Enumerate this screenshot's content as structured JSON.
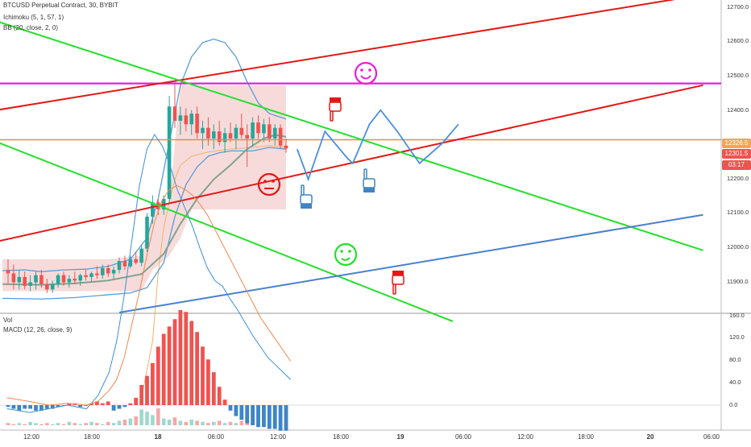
{
  "header": {
    "symbol_line": "BTCUSD Perpetual Contract, 30, BYBIT",
    "ichimoku": "Ichimoku (5, 1, 57, 1)",
    "bb": "BB (20, close, 2, 0)",
    "vol": "Vol",
    "macd": "MACD (12, 26, close, 9)"
  },
  "price_axis": {
    "labels": [
      "12700.0",
      "12600.0",
      "12500.0",
      "12400.0",
      "12200.0",
      "12100.0",
      "12000.0",
      "11900.0"
    ],
    "badges": [
      {
        "text": "12326.5",
        "color": "#f7a64f"
      },
      {
        "text": "12301.5",
        "color": "#ef5350"
      },
      {
        "text": "03:17",
        "color": "#ef5350"
      }
    ]
  },
  "macd_axis": {
    "labels": [
      "160.0",
      "120.0",
      "80.0",
      "40.0",
      "0.0"
    ]
  },
  "time_axis": {
    "labels": [
      "12:00",
      "18:00",
      "18",
      "06:00",
      "12:00",
      "18:00",
      "19",
      "06:00",
      "12:00",
      "18:00",
      "20",
      "06:00"
    ]
  },
  "colors": {
    "up_candle": "#26a69a",
    "down_candle": "#ef5350",
    "bb_band": "#5b9bd5",
    "cloud": "#f4cccc",
    "macd_line": "#3d8fd6",
    "signal_line": "#f0884e",
    "hist_up": "#ef5350",
    "hist_down": "#3d85c6",
    "trend_red": "#e51616",
    "trend_green": "#22e02a",
    "trend_blue": "#4a7fd0",
    "magenta": "#e91ed6",
    "orange": "#f5892f",
    "arrows": "#4a8ee0"
  },
  "drawings": {
    "emojis": [
      {
        "type": "smile-face-icon",
        "color": "#e91ed6"
      },
      {
        "type": "neutral-face-icon",
        "color": "#e51616"
      },
      {
        "type": "tongue-face-icon",
        "color": "#22e02a"
      }
    ],
    "hands": [
      "hand-down-icon",
      "hand-up-icon",
      "hand-up-icon",
      "hand-down-icon"
    ]
  },
  "chart_data": [
    {
      "type": "line",
      "title": "BTCUSD Perpetual Contract, 30, BYBIT",
      "ylim": [
        11840,
        12720
      ],
      "candles": [
        [
          11960,
          11990,
          11920,
          11950
        ],
        [
          11950,
          11975,
          11905,
          11925
        ],
        [
          11925,
          11960,
          11905,
          11940
        ],
        [
          11940,
          11955,
          11905,
          11915
        ],
        [
          11915,
          11945,
          11900,
          11925
        ],
        [
          11925,
          11955,
          11905,
          11945
        ],
        [
          11945,
          11960,
          11910,
          11920
        ],
        [
          11920,
          11935,
          11895,
          11905
        ],
        [
          11905,
          11930,
          11895,
          11920
        ],
        [
          11920,
          11950,
          11910,
          11945
        ],
        [
          11945,
          11955,
          11915,
          11925
        ],
        [
          11925,
          11945,
          11910,
          11935
        ],
        [
          11935,
          11955,
          11920,
          11930
        ],
        [
          11930,
          11950,
          11915,
          11945
        ],
        [
          11945,
          11960,
          11930,
          11940
        ],
        [
          11940,
          11955,
          11925,
          11950
        ],
        [
          11950,
          11970,
          11935,
          11945
        ],
        [
          11945,
          11975,
          11935,
          11965
        ],
        [
          11965,
          11975,
          11940,
          11950
        ],
        [
          11950,
          11970,
          11935,
          11960
        ],
        [
          11960,
          11995,
          11950,
          11985
        ],
        [
          11985,
          12000,
          11960,
          11970
        ],
        [
          11970,
          12000,
          11965,
          11990
        ],
        [
          11990,
          12010,
          11975,
          11980
        ],
        [
          11980,
          12030,
          11970,
          12020
        ],
        [
          12020,
          12120,
          12010,
          12110
        ],
        [
          12110,
          12170,
          12090,
          12150
        ],
        [
          12150,
          12160,
          12115,
          12130
        ],
        [
          12130,
          12170,
          12115,
          12160
        ],
        [
          12160,
          12450,
          12150,
          12420
        ],
        [
          12420,
          12490,
          12360,
          12380
        ],
        [
          12380,
          12420,
          12340,
          12395
        ],
        [
          12395,
          12415,
          12350,
          12370
        ],
        [
          12370,
          12410,
          12340,
          12400
        ],
        [
          12400,
          12420,
          12330,
          12345
        ],
        [
          12345,
          12380,
          12300,
          12360
        ],
        [
          12360,
          12390,
          12310,
          12330
        ],
        [
          12330,
          12370,
          12300,
          12350
        ],
        [
          12350,
          12380,
          12310,
          12320
        ],
        [
          12320,
          12360,
          12290,
          12345
        ],
        [
          12345,
          12375,
          12320,
          12330
        ],
        [
          12330,
          12370,
          12300,
          12360
        ],
        [
          12360,
          12400,
          12330,
          12340
        ],
        [
          12340,
          12370,
          12250,
          12330
        ],
        [
          12330,
          12390,
          12310,
          12375
        ],
        [
          12375,
          12395,
          12330,
          12345
        ],
        [
          12345,
          12385,
          12320,
          12370
        ],
        [
          12370,
          12390,
          12320,
          12330
        ],
        [
          12330,
          12370,
          12310,
          12360
        ],
        [
          12360,
          12370,
          12300,
          12310
        ],
        [
          12310,
          12330,
          12290,
          12302
        ]
      ],
      "bb_upper": [
        [
          -1,
          11958
        ],
        [
          3,
          11960
        ],
        [
          6,
          11955
        ],
        [
          10,
          11960
        ],
        [
          14,
          11962
        ],
        [
          18,
          11970
        ],
        [
          22,
          11990
        ],
        [
          25,
          12050
        ],
        [
          27,
          12160
        ],
        [
          29,
          12320
        ],
        [
          31,
          12480
        ],
        [
          33,
          12560
        ],
        [
          35,
          12600
        ],
        [
          37,
          12610
        ],
        [
          39,
          12600
        ],
        [
          41,
          12560
        ],
        [
          43,
          12490
        ],
        [
          45,
          12430
        ],
        [
          47,
          12400
        ],
        [
          49,
          12390
        ],
        [
          50,
          12385
        ]
      ],
      "bb_basis": [
        [
          -1,
          11920
        ],
        [
          6,
          11918
        ],
        [
          12,
          11922
        ],
        [
          18,
          11930
        ],
        [
          24,
          11948
        ],
        [
          28,
          12005
        ],
        [
          31,
          12090
        ],
        [
          34,
          12160
        ],
        [
          37,
          12215
        ],
        [
          40,
          12255
        ],
        [
          43,
          12300
        ],
        [
          46,
          12330
        ],
        [
          48,
          12340
        ],
        [
          50,
          12335
        ]
      ],
      "bb_lower": [
        [
          -1,
          11880
        ],
        [
          6,
          11878
        ],
        [
          12,
          11882
        ],
        [
          18,
          11890
        ],
        [
          22,
          11895
        ],
        [
          25,
          11910
        ],
        [
          28,
          11980
        ],
        [
          30,
          12110
        ],
        [
          32,
          12200
        ],
        [
          34,
          12250
        ],
        [
          36,
          12280
        ],
        [
          38,
          12290
        ],
        [
          40,
          12295
        ],
        [
          44,
          12295
        ],
        [
          47,
          12305
        ],
        [
          50,
          12300
        ]
      ],
      "lagging_span": [
        [
          24,
          11600
        ],
        [
          26,
          11760
        ],
        [
          27,
          11950
        ],
        [
          28,
          12080
        ],
        [
          29,
          12150
        ],
        [
          30,
          12215
        ],
        [
          31,
          12255
        ],
        [
          33,
          12280
        ],
        [
          36,
          12292
        ],
        [
          40,
          12300
        ],
        [
          44,
          12305
        ],
        [
          47,
          12310
        ],
        [
          50,
          12305
        ]
      ],
      "cloud_top": [
        [
          -1,
          11990
        ],
        [
          18,
          11990
        ],
        [
          24,
          12000
        ],
        [
          26,
          12120
        ],
        [
          29,
          12150
        ],
        [
          31,
          12480
        ],
        [
          50,
          12480
        ]
      ],
      "cloud_bottom": [
        [
          -1,
          11900
        ],
        [
          24,
          11900
        ],
        [
          26,
          11960
        ],
        [
          29,
          12000
        ],
        [
          31,
          12050
        ],
        [
          33,
          12130
        ],
        [
          50,
          12130
        ]
      ],
      "horizontal_lines": [
        {
          "name": "magenta-level",
          "value": 12485,
          "color": "#e91ed6"
        },
        {
          "name": "orange-level",
          "value": 12326.5,
          "color": "#f5892f"
        }
      ],
      "trend_lines": [
        {
          "name": "red-channel-upper",
          "color": "#e51616",
          "points": [
            [
              -2,
              12410
            ],
            [
              125,
              12735
            ]
          ]
        },
        {
          "name": "red-channel-lower",
          "color": "#e51616",
          "points": [
            [
              -2,
              12040
            ],
            [
              125,
              12480
            ]
          ]
        },
        {
          "name": "green-channel-upper",
          "color": "#22e02a",
          "points": [
            [
              -2,
              12660
            ],
            [
              125,
              12015
            ]
          ]
        },
        {
          "name": "green-channel-lower",
          "color": "#22e02a",
          "points": [
            [
              -2,
              12320
            ],
            [
              80,
              11815
            ]
          ]
        },
        {
          "name": "blue-support",
          "color": "#4a7fd0",
          "points": [
            [
              20,
              11840
            ],
            [
              125,
              12115
            ]
          ]
        }
      ]
    },
    {
      "type": "bar",
      "title": "MACD (12, 26, close, 9)",
      "ylim": [
        -16,
        160
      ],
      "histogram": [
        -1,
        -2,
        -3,
        -2,
        -2,
        -3,
        -3,
        -2,
        -2,
        -1,
        0,
        1,
        1,
        -1,
        0,
        1,
        2,
        1,
        2,
        -3,
        -2,
        -1,
        1,
        4,
        11,
        16,
        23,
        32,
        39,
        43,
        47,
        52,
        51,
        46,
        40,
        32,
        25,
        18,
        10,
        3,
        -3,
        -6,
        -8,
        -10,
        -11,
        -12,
        -12,
        -13,
        -13,
        -14,
        -14
      ],
      "macd_line": [
        [
          -1,
          -2
        ],
        [
          5,
          -4
        ],
        [
          10,
          -2
        ],
        [
          15,
          0
        ],
        [
          20,
          -2
        ],
        [
          23,
          5
        ],
        [
          26,
          18
        ],
        [
          28,
          35
        ],
        [
          30,
          60
        ],
        [
          32,
          90
        ],
        [
          34,
          120
        ],
        [
          36,
          140
        ],
        [
          38,
          148
        ],
        [
          40,
          142
        ],
        [
          42,
          132
        ],
        [
          44,
          118
        ],
        [
          46,
          108
        ],
        [
          48,
          98
        ],
        [
          50,
          86
        ],
        [
          52,
          75
        ],
        [
          54,
          68
        ],
        [
          56,
          65
        ],
        [
          58,
          58
        ],
        [
          60,
          52
        ],
        [
          62,
          45
        ],
        [
          64,
          38
        ],
        [
          66,
          32
        ],
        [
          68,
          26
        ],
        [
          70,
          22
        ],
        [
          72,
          18
        ],
        [
          74,
          14
        ]
      ],
      "signal_line": [
        [
          -1,
          4
        ],
        [
          5,
          2
        ],
        [
          10,
          0
        ],
        [
          15,
          1
        ],
        [
          20,
          0
        ],
        [
          23,
          2
        ],
        [
          26,
          8
        ],
        [
          28,
          14
        ],
        [
          30,
          26
        ],
        [
          32,
          44
        ],
        [
          34,
          62
        ],
        [
          36,
          82
        ],
        [
          38,
          100
        ],
        [
          40,
          112
        ],
        [
          42,
          118
        ],
        [
          44,
          120
        ],
        [
          46,
          118
        ],
        [
          48,
          115
        ],
        [
          50,
          110
        ],
        [
          52,
          104
        ],
        [
          54,
          96
        ],
        [
          56,
          88
        ],
        [
          58,
          80
        ],
        [
          60,
          72
        ],
        [
          62,
          64
        ],
        [
          64,
          56
        ],
        [
          66,
          48
        ],
        [
          68,
          42
        ],
        [
          70,
          36
        ],
        [
          72,
          30
        ],
        [
          74,
          24
        ]
      ],
      "volume": [
        2,
        1,
        2,
        1,
        3,
        2,
        1,
        2,
        1,
        2,
        1,
        3,
        2,
        1,
        2,
        3,
        2,
        1,
        3,
        2,
        4,
        5,
        6,
        8,
        14,
        12,
        9,
        15,
        6,
        5,
        7,
        4,
        3,
        5,
        4,
        3,
        2,
        3,
        4,
        2,
        3,
        2,
        4,
        3,
        2,
        5,
        3,
        2,
        4,
        3,
        2
      ]
    }
  ]
}
